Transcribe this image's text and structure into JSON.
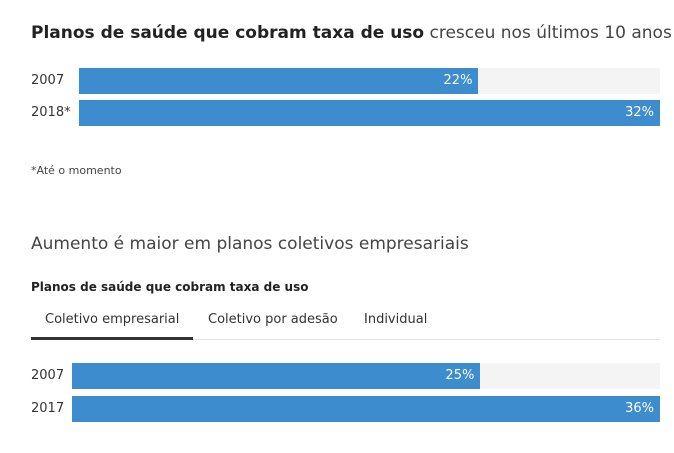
{
  "chart1": {
    "title_bold": "Planos de saúde que cobram taxa de uso",
    "title_rest": " cresceu nos últimos 10 anos",
    "footnote": "*Até o momento"
  },
  "section2": {
    "title": "Aumento é maior em planos coletivos empresariais",
    "subtitle": "Planos de saúde que cobram taxa de uso",
    "tabs": [
      {
        "label": "Coletivo empresarial",
        "active": true
      },
      {
        "label": "Coletivo por adesão",
        "active": false
      },
      {
        "label": "Individual",
        "active": false
      }
    ]
  },
  "colors": {
    "bar": "#3c8cce",
    "track": "#f4f4f4"
  },
  "chart_data": [
    {
      "type": "bar",
      "orientation": "horizontal",
      "title": "Planos de saúde que cobram taxa de uso cresceu nos últimos 10 anos",
      "categories": [
        "2007",
        "2018*"
      ],
      "values": [
        22,
        32
      ],
      "value_labels": [
        "22%",
        "32%"
      ],
      "unit": "%",
      "xlim": [
        0,
        32
      ]
    },
    {
      "type": "bar",
      "orientation": "horizontal",
      "title": "Planos de saúde que cobram taxa de uso",
      "selected_tab": "Coletivo empresarial",
      "categories": [
        "2007",
        "2017"
      ],
      "values": [
        25,
        36
      ],
      "value_labels": [
        "25%",
        "36%"
      ],
      "unit": "%",
      "xlim": [
        0,
        36
      ]
    }
  ]
}
